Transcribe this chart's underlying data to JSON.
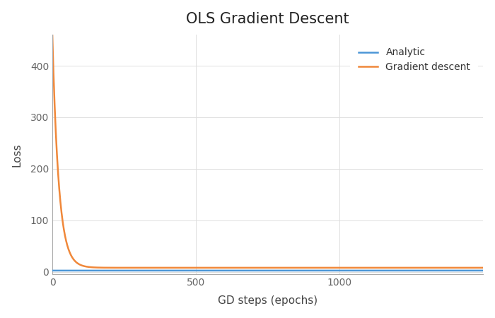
{
  "title": "OLS Gradient Descent",
  "xlabel": "GD steps (epochs)",
  "ylabel": "Loss",
  "xlim": [
    0,
    1500
  ],
  "ylim": [
    -5,
    460
  ],
  "yticks": [
    0,
    100,
    200,
    300,
    400
  ],
  "xticks": [
    0,
    500,
    1000
  ],
  "analytic_color": "#4C96D7",
  "gd_color": "#F0883A",
  "analytic_label": "Analytic",
  "gd_label": "Gradient descent",
  "analytic_value": 2.5,
  "gd_start": 460.0,
  "gd_end": 8.0,
  "gd_decay": 0.045,
  "n_steps": 1500,
  "line_width": 1.8,
  "title_fontsize": 15,
  "label_fontsize": 11,
  "tick_fontsize": 10,
  "legend_fontsize": 10,
  "bg_color": "#FFFFFF",
  "grid_color": "#DEDEDE",
  "spine_color": "#AAAAAA"
}
